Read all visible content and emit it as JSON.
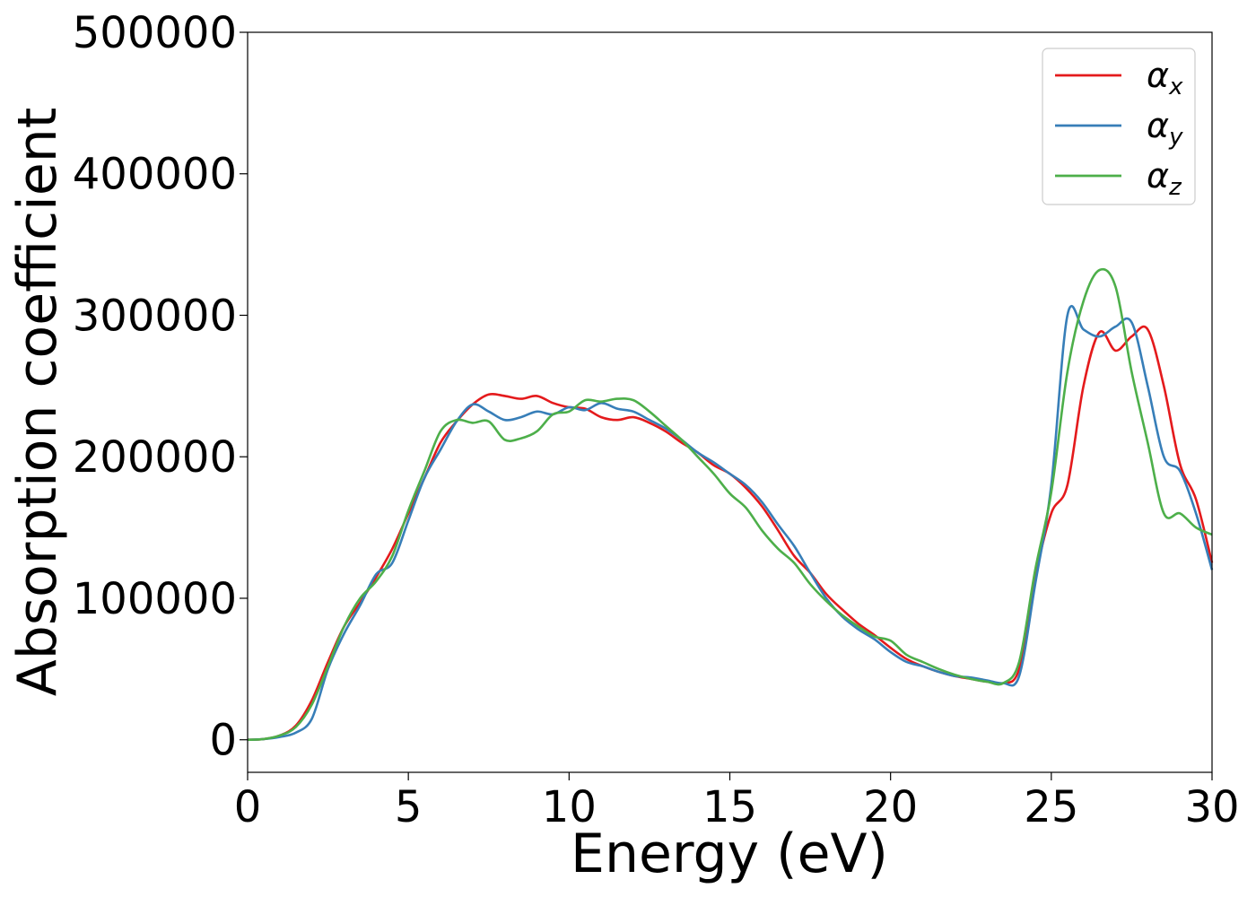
{
  "chart_data": {
    "type": "line",
    "xlabel": "Energy (eV)",
    "ylabel": "Absorption coefficient",
    "xlim": [
      0,
      30
    ],
    "ylim": [
      -23000,
      500000
    ],
    "xticks": [
      "0",
      "5",
      "10",
      "15",
      "20",
      "25",
      "30"
    ],
    "yticks": [
      "0",
      "100000",
      "200000",
      "300000",
      "400000",
      "500000"
    ],
    "grid": false,
    "legend_position": "top-right",
    "x": [
      0,
      0.5,
      1,
      1.5,
      2,
      2.5,
      3,
      3.5,
      4,
      4.5,
      5,
      5.5,
      6,
      6.5,
      7,
      7.5,
      8,
      8.5,
      9,
      9.5,
      10,
      10.5,
      11,
      11.5,
      12,
      12.5,
      13,
      13.5,
      14,
      14.5,
      15,
      15.5,
      16,
      16.5,
      17,
      17.5,
      18,
      18.5,
      19,
      19.5,
      20,
      20.5,
      21,
      21.5,
      22,
      22.5,
      23,
      23.5,
      24,
      24.5,
      25,
      25.5,
      26,
      26.5,
      27,
      27.5,
      28,
      28.5,
      29,
      29.5,
      30
    ],
    "series": [
      {
        "name": "α",
        "sub": "x",
        "color": "#e41a1c",
        "values": [
          0,
          500,
          3000,
          10000,
          28000,
          55000,
          80000,
          97000,
          115000,
          135000,
          160000,
          185000,
          210000,
          225000,
          237000,
          244000,
          243000,
          241000,
          243000,
          238000,
          235000,
          234000,
          228000,
          226000,
          228000,
          224000,
          218000,
          210000,
          203000,
          194000,
          188000,
          178000,
          165000,
          148000,
          130000,
          118000,
          103000,
          92000,
          82000,
          74000,
          65000,
          57000,
          52000,
          48000,
          45000,
          43000,
          41000,
          40000,
          50000,
          115000,
          160000,
          180000,
          250000,
          288000,
          275000,
          285000,
          290000,
          250000,
          195000,
          170000,
          125000
        ]
      },
      {
        "name": "α",
        "sub": "y",
        "color": "#377eb8",
        "values": [
          0,
          500,
          2000,
          5000,
          15000,
          50000,
          75000,
          95000,
          117000,
          125000,
          155000,
          185000,
          205000,
          225000,
          237000,
          232000,
          226000,
          228000,
          232000,
          230000,
          235000,
          233000,
          238000,
          234000,
          232000,
          226000,
          220000,
          212000,
          203000,
          196000,
          188000,
          180000,
          168000,
          152000,
          137000,
          118000,
          100000,
          87000,
          78000,
          71000,
          62000,
          55000,
          52000,
          48000,
          45000,
          44000,
          42000,
          40000,
          45000,
          110000,
          180000,
          300000,
          290000,
          285000,
          292000,
          295000,
          250000,
          200000,
          190000,
          160000,
          120000
        ]
      },
      {
        "name": "α",
        "sub": "z",
        "color": "#4daf4a",
        "values": [
          0,
          500,
          3000,
          9000,
          25000,
          52000,
          80000,
          100000,
          112000,
          130000,
          162000,
          190000,
          218000,
          226000,
          224000,
          225000,
          212000,
          213000,
          218000,
          230000,
          232000,
          240000,
          239000,
          241000,
          240000,
          232000,
          222000,
          212000,
          200000,
          188000,
          174000,
          164000,
          148000,
          135000,
          125000,
          110000,
          98000,
          88000,
          80000,
          73000,
          70000,
          60000,
          55000,
          50000,
          46000,
          43000,
          41000,
          40000,
          55000,
          120000,
          175000,
          260000,
          310000,
          332000,
          320000,
          260000,
          210000,
          160000,
          160000,
          150000,
          145000
        ]
      }
    ]
  }
}
